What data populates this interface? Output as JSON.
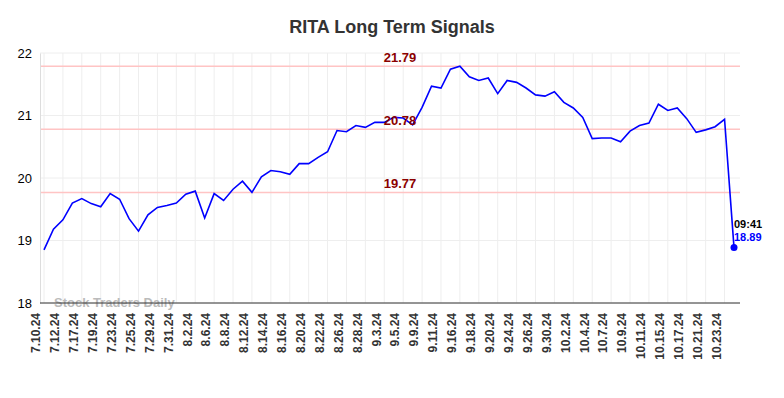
{
  "chart_data": {
    "type": "line",
    "title": "RITA Long Term Signals",
    "watermark": "Stock Traders Daily",
    "color": "#0000ff",
    "grid": true,
    "categories": [
      "7.10.24",
      null,
      "7.12.24",
      null,
      "7.17.24",
      null,
      "7.19.24",
      null,
      "7.23.24",
      null,
      "7.25.24",
      null,
      "7.29.24",
      null,
      "7.31.24",
      null,
      "8.2.24",
      null,
      "8.6.24",
      null,
      "8.8.24",
      null,
      "8.12.24",
      null,
      "8.14.24",
      null,
      "8.16.24",
      null,
      "8.20.24",
      null,
      "8.22.24",
      null,
      "8.26.24",
      null,
      "8.28.24",
      null,
      "9.3.24",
      null,
      "9.5.24",
      null,
      "9.9.24",
      null,
      "9.11.24",
      null,
      "9.16.24",
      null,
      "9.18.24",
      null,
      "9.20.24",
      null,
      "9.24.24",
      null,
      "9.26.24",
      null,
      "9.30.24",
      null,
      "10.2.24",
      null,
      "10.4.24",
      null,
      "10.7.24",
      null,
      "10.9.24",
      null,
      "10.11.24",
      null,
      "10.15.24",
      null,
      "10.17.24",
      null,
      "10.21.24",
      null,
      "10.23.24",
      null
    ],
    "values": [
      18.85,
      19.18,
      19.33,
      19.6,
      19.67,
      19.59,
      19.54,
      19.75,
      19.66,
      19.35,
      19.15,
      19.41,
      19.53,
      19.56,
      19.6,
      19.74,
      19.79,
      19.36,
      19.75,
      19.64,
      19.82,
      19.95,
      19.77,
      20.02,
      20.12,
      20.1,
      20.06,
      20.23,
      20.23,
      20.33,
      20.42,
      20.76,
      20.74,
      20.84,
      20.81,
      20.89,
      20.89,
      20.97,
      20.96,
      20.85,
      21.13,
      21.47,
      21.44,
      21.74,
      21.79,
      21.62,
      21.56,
      21.6,
      21.35,
      21.56,
      21.53,
      21.44,
      21.33,
      21.31,
      21.38,
      21.21,
      21.12,
      20.97,
      20.63,
      20.64,
      20.64,
      20.58,
      20.75,
      20.84,
      20.88,
      21.18,
      21.08,
      21.12,
      20.95,
      20.73,
      20.77,
      20.82,
      20.94,
      18.89
    ],
    "ylim": [
      18,
      22
    ],
    "yticks": [
      18,
      19,
      20,
      21,
      22
    ],
    "reference_lines": [
      21.79,
      20.78,
      19.77
    ],
    "last_time": "09:41"
  }
}
